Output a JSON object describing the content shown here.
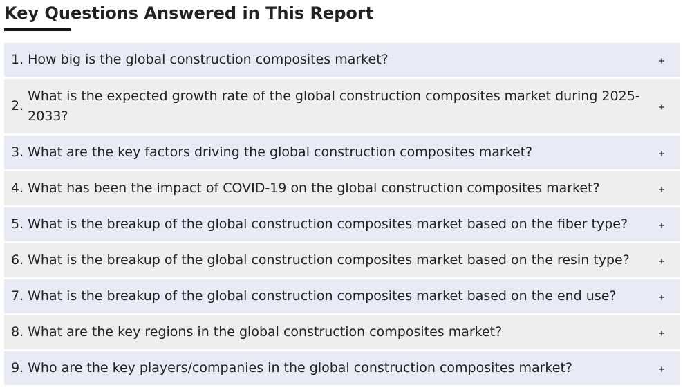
{
  "header": {
    "title": "Key Questions Answered in This Report"
  },
  "faq": {
    "expand_icon": "plus-icon",
    "items": [
      {
        "number": "1.",
        "question": "How big is the global construction composites market?"
      },
      {
        "number": "2.",
        "question": "What is the expected growth rate of the global construction composites market during 2025-2033?"
      },
      {
        "number": "3.",
        "question": "What are the key factors driving the global construction composites market?"
      },
      {
        "number": "4.",
        "question": "What has been the impact of COVID-19 on the global construction composites market?"
      },
      {
        "number": "5.",
        "question": "What is the breakup of the global construction composites market based on the fiber type?"
      },
      {
        "number": "6.",
        "question": "What is the breakup of the global construction composites market based on the resin type?"
      },
      {
        "number": "7.",
        "question": "What is the breakup of the global construction composites market based on the end use?"
      },
      {
        "number": "8.",
        "question": "What are the key regions in the global construction composites market?"
      },
      {
        "number": "9.",
        "question": "Who are the key players/companies in the global construction composites market?"
      }
    ]
  },
  "colors": {
    "row_blue": "#e8eaf6",
    "row_grey": "#eeeeee",
    "text": "#222222",
    "underline": "#111111"
  }
}
